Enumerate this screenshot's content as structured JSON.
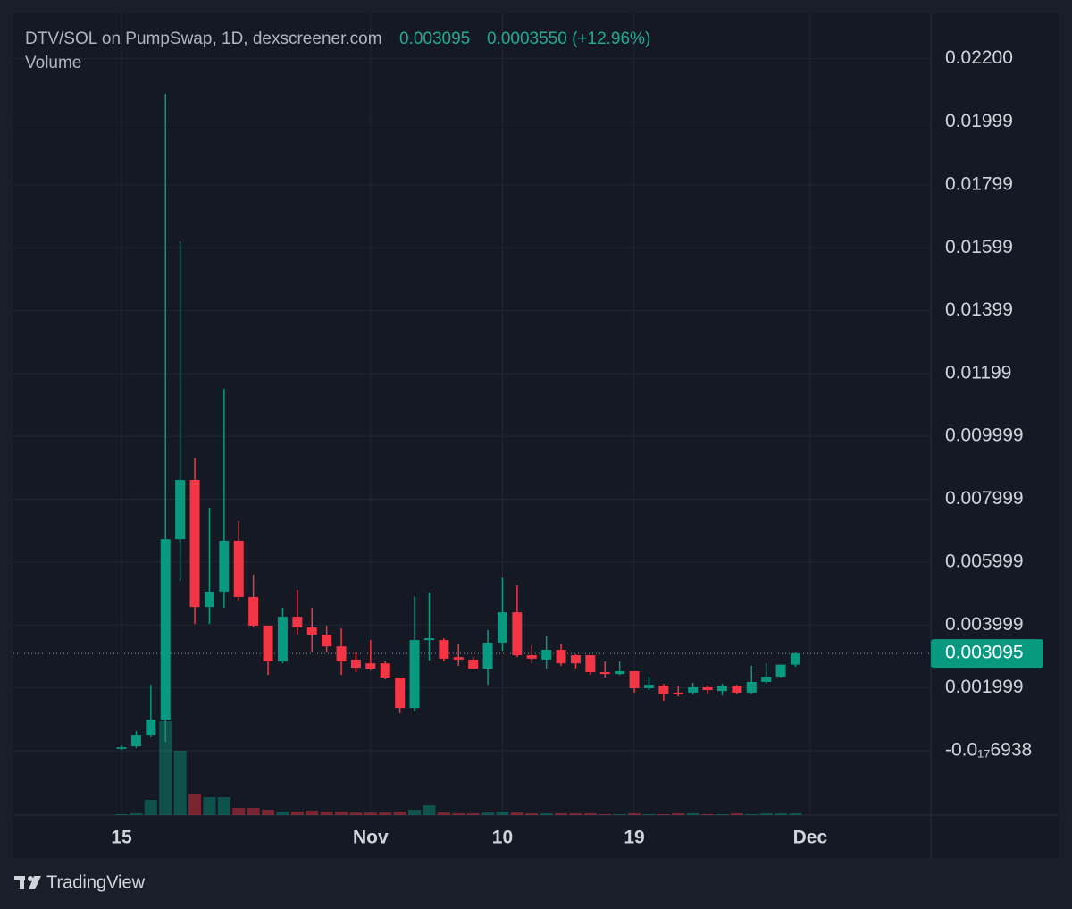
{
  "chart_data": {
    "type": "candlestick",
    "title": "DTV/SOL on PumpSwap, 1D, dexscreener.com",
    "price": "0.003095",
    "change": "0.0003550 (+12.96%)",
    "volume_label": "Volume",
    "open": [
      6e-05,
      0.00014,
      0.00051,
      0.00099,
      0.00673,
      0.00861,
      0.00457,
      0.00506,
      0.00668,
      0.00489,
      0.00398,
      0.00284,
      0.00426,
      0.00392,
      0.00369,
      0.00332,
      0.0029,
      0.00278,
      0.00278,
      0.00233,
      0.00136,
      0.00352,
      0.00352,
      0.00298,
      0.0029,
      0.00261,
      0.00344,
      0.0044,
      0.00304,
      0.0029,
      0.00321,
      0.00304,
      0.00304,
      0.0025,
      0.00244,
      0.00253,
      0.00199,
      0.00207,
      0.00185,
      0.00185,
      0.00202,
      0.0019,
      0.00205,
      0.00185,
      0.00219,
      0.00236,
      0.00274
    ],
    "high": [
      0.00017,
      0.00063,
      0.0021,
      0.02088,
      0.01619,
      0.00932,
      0.00773,
      0.01151,
      0.0073,
      0.0056,
      0.00398,
      0.00455,
      0.00511,
      0.00455,
      0.00398,
      0.00389,
      0.00313,
      0.00352,
      0.00284,
      0.00233,
      0.00491,
      0.00503,
      0.00358,
      0.00341,
      0.00298,
      0.00384,
      0.00551,
      0.00526,
      0.00335,
      0.00364,
      0.00341,
      0.00307,
      0.00304,
      0.00284,
      0.00284,
      0.00253,
      0.00236,
      0.00213,
      0.00205,
      0.00216,
      0.00207,
      0.00213,
      0.0021,
      0.0027,
      0.00278,
      0.00274,
      0.00313
    ],
    "low": [
      3e-05,
      9e-05,
      0.00043,
      0.00028,
      0.0054,
      0.00403,
      0.00403,
      0.00455,
      0.00477,
      0.00392,
      0.00241,
      0.00278,
      0.00369,
      0.00313,
      0.00313,
      0.00241,
      0.0025,
      0.00256,
      0.00227,
      0.00119,
      0.00125,
      0.00287,
      0.00284,
      0.0027,
      0.00259,
      0.0021,
      0.00318,
      0.00298,
      0.00278,
      0.00261,
      0.0027,
      0.00261,
      0.00241,
      0.00233,
      0.00241,
      0.00185,
      0.00193,
      0.00159,
      0.00173,
      0.00179,
      0.00182,
      0.00176,
      0.00182,
      0.00179,
      0.00213,
      0.00233,
      0.00267
    ],
    "close": [
      0.00011,
      0.00051,
      0.00099,
      0.00673,
      0.00861,
      0.00457,
      0.00506,
      0.00668,
      0.00489,
      0.00398,
      0.00284,
      0.00426,
      0.00392,
      0.00369,
      0.00332,
      0.00284,
      0.00264,
      0.00261,
      0.00233,
      0.00136,
      0.00352,
      0.00358,
      0.00293,
      0.0029,
      0.00261,
      0.00344,
      0.0044,
      0.00304,
      0.00293,
      0.00321,
      0.00278,
      0.00278,
      0.0025,
      0.00244,
      0.00253,
      0.00199,
      0.0021,
      0.00182,
      0.00179,
      0.00202,
      0.00193,
      0.00205,
      0.00185,
      0.00219,
      0.00236,
      0.00274,
      0.003095
    ],
    "volume": [
      1,
      2,
      17,
      105,
      72,
      24,
      20,
      20,
      8,
      8,
      6,
      4,
      4,
      5,
      4,
      4,
      3,
      3,
      3,
      4,
      6,
      11,
      3,
      2,
      2,
      3,
      4,
      3,
      2,
      2,
      2,
      2,
      2,
      1,
      1,
      2,
      1,
      1,
      2,
      2,
      1,
      1,
      2,
      1,
      2,
      2,
      2
    ],
    "colors": {
      "up": "#089981",
      "down": "#f23645"
    },
    "xlim": [
      -7.38,
      55.24
    ],
    "xticks": [
      {
        "value": 0,
        "label": "15"
      },
      {
        "value": 17,
        "label": "Nov"
      },
      {
        "value": 26,
        "label": "10"
      },
      {
        "value": 35,
        "label": "19"
      },
      {
        "value": 47,
        "label": "Dec"
      }
    ],
    "ylim": [
      -0.002045,
      0.02344
    ],
    "yticks": [
      {
        "value": 0.022,
        "label": "0.02200"
      },
      0.01999,
      0.01799,
      0.01599,
      0.01399,
      0.01199,
      0.009999,
      0.007999,
      0.005999,
      0.003999,
      0.001999,
      {
        "value": -6.938e-18,
        "label": "-0.0₁₇6938"
      }
    ],
    "last_price": {
      "value": 0.003095,
      "label": "0.003095"
    },
    "grid": true
  },
  "brand": "TradingView"
}
